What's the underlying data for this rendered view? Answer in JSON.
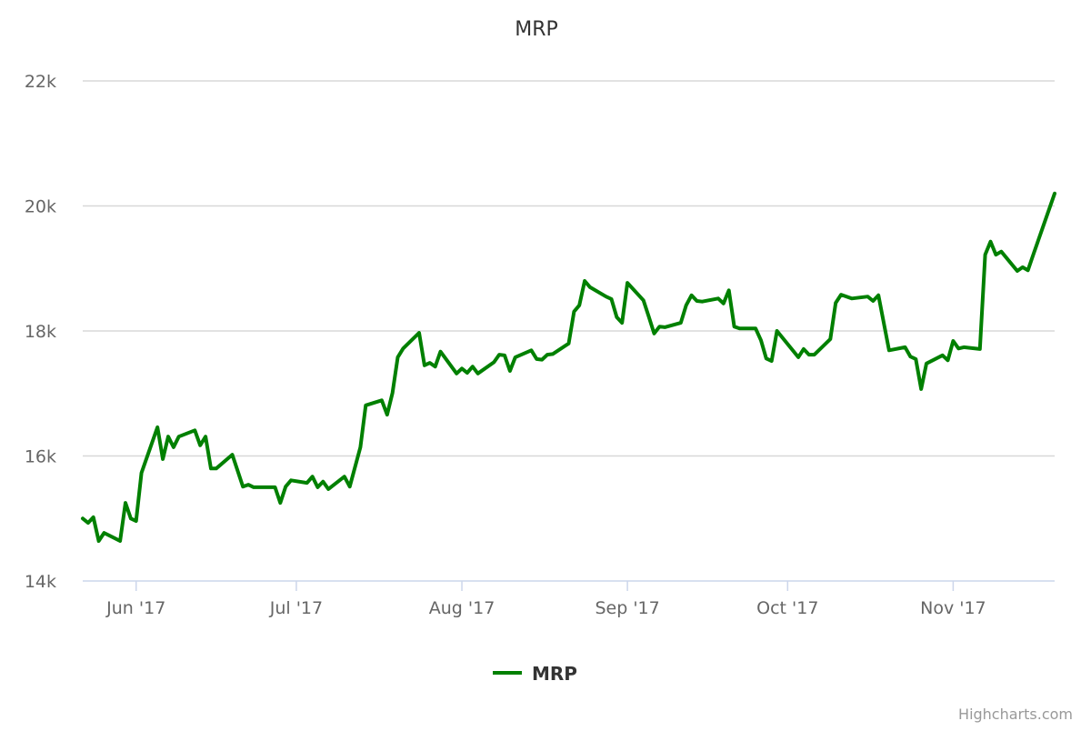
{
  "chart_data": {
    "type": "line",
    "title": "MRP",
    "xlabel": "",
    "ylabel": "",
    "x_type": "datetime",
    "xlim": [
      "2017-05-22",
      "2017-11-20"
    ],
    "ylim": [
      14000,
      22000
    ],
    "y_ticks": [
      14000,
      16000,
      18000,
      20000,
      22000
    ],
    "y_tick_labels": [
      "14k",
      "16k",
      "18k",
      "20k",
      "22k"
    ],
    "x_ticks": [
      "2017-06-01",
      "2017-07-01",
      "2017-08-01",
      "2017-09-01",
      "2017-10-01",
      "2017-11-01"
    ],
    "x_tick_labels": [
      "Jun '17",
      "Jul '17",
      "Aug '17",
      "Sep '17",
      "Oct '17",
      "Nov '17"
    ],
    "grid": true,
    "legend": {
      "position": "bottom",
      "entries": [
        "MRP"
      ]
    },
    "credits": "Highcharts.com",
    "series": [
      {
        "name": "MRP",
        "color": "#008000",
        "points": [
          [
            "2017-05-22",
            15000
          ],
          [
            "2017-05-23",
            14930
          ],
          [
            "2017-05-24",
            15020
          ],
          [
            "2017-05-25",
            14640
          ],
          [
            "2017-05-26",
            14770
          ],
          [
            "2017-05-29",
            14640
          ],
          [
            "2017-05-30",
            15250
          ],
          [
            "2017-05-31",
            15000
          ],
          [
            "2017-06-01",
            14960
          ],
          [
            "2017-06-02",
            15730
          ],
          [
            "2017-06-05",
            16460
          ],
          [
            "2017-06-06",
            15950
          ],
          [
            "2017-06-07",
            16310
          ],
          [
            "2017-06-08",
            16140
          ],
          [
            "2017-06-09",
            16310
          ],
          [
            "2017-06-12",
            16410
          ],
          [
            "2017-06-13",
            16170
          ],
          [
            "2017-06-14",
            16310
          ],
          [
            "2017-06-15",
            15800
          ],
          [
            "2017-06-16",
            15800
          ],
          [
            "2017-06-19",
            16020
          ],
          [
            "2017-06-21",
            15510
          ],
          [
            "2017-06-22",
            15540
          ],
          [
            "2017-06-23",
            15500
          ],
          [
            "2017-06-27",
            15500
          ],
          [
            "2017-06-28",
            15250
          ],
          [
            "2017-06-29",
            15510
          ],
          [
            "2017-06-30",
            15610
          ],
          [
            "2017-07-03",
            15570
          ],
          [
            "2017-07-04",
            15670
          ],
          [
            "2017-07-05",
            15500
          ],
          [
            "2017-07-06",
            15590
          ],
          [
            "2017-07-07",
            15470
          ],
          [
            "2017-07-10",
            15670
          ],
          [
            "2017-07-11",
            15510
          ],
          [
            "2017-07-13",
            16140
          ],
          [
            "2017-07-14",
            16810
          ],
          [
            "2017-07-17",
            16890
          ],
          [
            "2017-07-18",
            16660
          ],
          [
            "2017-07-19",
            17010
          ],
          [
            "2017-07-20",
            17580
          ],
          [
            "2017-07-21",
            17720
          ],
          [
            "2017-07-24",
            17970
          ],
          [
            "2017-07-25",
            17450
          ],
          [
            "2017-07-26",
            17490
          ],
          [
            "2017-07-27",
            17430
          ],
          [
            "2017-07-28",
            17670
          ],
          [
            "2017-07-31",
            17320
          ],
          [
            "2017-08-01",
            17400
          ],
          [
            "2017-08-02",
            17330
          ],
          [
            "2017-08-03",
            17430
          ],
          [
            "2017-08-04",
            17320
          ],
          [
            "2017-08-07",
            17500
          ],
          [
            "2017-08-08",
            17620
          ],
          [
            "2017-08-09",
            17610
          ],
          [
            "2017-08-10",
            17360
          ],
          [
            "2017-08-11",
            17580
          ],
          [
            "2017-08-14",
            17690
          ],
          [
            "2017-08-15",
            17550
          ],
          [
            "2017-08-16",
            17540
          ],
          [
            "2017-08-17",
            17620
          ],
          [
            "2017-08-18",
            17630
          ],
          [
            "2017-08-21",
            17800
          ],
          [
            "2017-08-22",
            18310
          ],
          [
            "2017-08-23",
            18410
          ],
          [
            "2017-08-24",
            18800
          ],
          [
            "2017-08-25",
            18700
          ],
          [
            "2017-08-28",
            18550
          ],
          [
            "2017-08-29",
            18510
          ],
          [
            "2017-08-30",
            18220
          ],
          [
            "2017-08-31",
            18130
          ],
          [
            "2017-09-01",
            18770
          ],
          [
            "2017-09-04",
            18490
          ],
          [
            "2017-09-05",
            18230
          ],
          [
            "2017-09-06",
            17960
          ],
          [
            "2017-09-07",
            18070
          ],
          [
            "2017-09-08",
            18060
          ],
          [
            "2017-09-11",
            18130
          ],
          [
            "2017-09-12",
            18410
          ],
          [
            "2017-09-13",
            18570
          ],
          [
            "2017-09-14",
            18480
          ],
          [
            "2017-09-15",
            18470
          ],
          [
            "2017-09-18",
            18520
          ],
          [
            "2017-09-19",
            18440
          ],
          [
            "2017-09-20",
            18650
          ],
          [
            "2017-09-21",
            18070
          ],
          [
            "2017-09-22",
            18040
          ],
          [
            "2017-09-25",
            18040
          ],
          [
            "2017-09-26",
            17850
          ],
          [
            "2017-09-27",
            17560
          ],
          [
            "2017-09-28",
            17520
          ],
          [
            "2017-09-29",
            18000
          ],
          [
            "2017-10-03",
            17580
          ],
          [
            "2017-10-04",
            17710
          ],
          [
            "2017-10-05",
            17620
          ],
          [
            "2017-10-06",
            17620
          ],
          [
            "2017-10-09",
            17870
          ],
          [
            "2017-10-10",
            18450
          ],
          [
            "2017-10-11",
            18580
          ],
          [
            "2017-10-13",
            18520
          ],
          [
            "2017-10-16",
            18550
          ],
          [
            "2017-10-17",
            18480
          ],
          [
            "2017-10-18",
            18570
          ],
          [
            "2017-10-20",
            17690
          ],
          [
            "2017-10-23",
            17740
          ],
          [
            "2017-10-24",
            17590
          ],
          [
            "2017-10-25",
            17550
          ],
          [
            "2017-10-26",
            17070
          ],
          [
            "2017-10-27",
            17480
          ],
          [
            "2017-10-30",
            17610
          ],
          [
            "2017-10-31",
            17530
          ],
          [
            "2017-11-01",
            17840
          ],
          [
            "2017-11-02",
            17720
          ],
          [
            "2017-11-03",
            17740
          ],
          [
            "2017-11-06",
            17710
          ],
          [
            "2017-11-07",
            19220
          ],
          [
            "2017-11-08",
            19430
          ],
          [
            "2017-11-09",
            19220
          ],
          [
            "2017-11-10",
            19270
          ],
          [
            "2017-11-13",
            18960
          ],
          [
            "2017-11-14",
            19020
          ],
          [
            "2017-11-15",
            18970
          ],
          [
            "2017-11-16",
            19220
          ],
          [
            "2017-11-20",
            20200
          ]
        ]
      }
    ]
  }
}
